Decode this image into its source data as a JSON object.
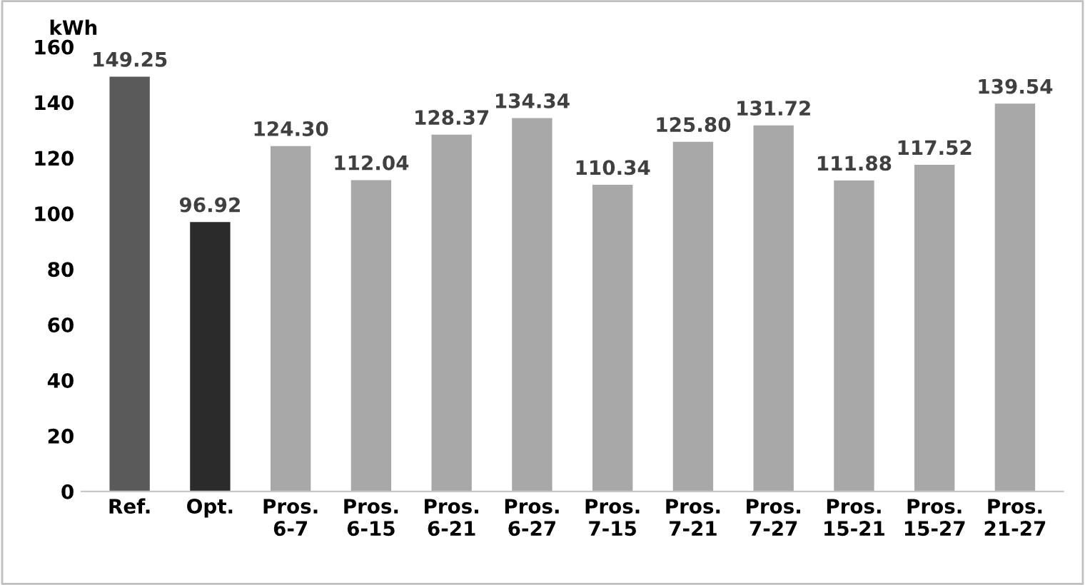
{
  "chart_data": {
    "type": "bar",
    "ylabel": "kWh",
    "categories": [
      "Ref.",
      "Opt.",
      "Pros.\n6-7",
      "Pros.\n6-15",
      "Pros.\n6-21",
      "Pros.\n6-27",
      "Pros.\n7-15",
      "Pros.\n7-21",
      "Pros.\n7-27",
      "Pros.\n15-21",
      "Pros.\n15-27",
      "Pros.\n21-27"
    ],
    "values": [
      149.25,
      96.92,
      124.3,
      112.04,
      128.37,
      134.34,
      110.34,
      125.8,
      131.72,
      111.88,
      117.52,
      139.54
    ],
    "value_labels": [
      "149.25",
      "96.92",
      "124.30",
      "112.04",
      "128.37",
      "134.34",
      "110.34",
      "125.80",
      "131.72",
      "111.88",
      "117.52",
      "139.54"
    ],
    "colors": [
      "#5a5a5a",
      "#2b2b2b",
      "#a8a8a8",
      "#a8a8a8",
      "#a8a8a8",
      "#a8a8a8",
      "#a8a8a8",
      "#a8a8a8",
      "#a8a8a8",
      "#a8a8a8",
      "#a8a8a8",
      "#a8a8a8"
    ],
    "ylim": [
      0,
      160
    ],
    "yticks": [
      0,
      20,
      40,
      60,
      80,
      100,
      120,
      140,
      160
    ],
    "grid": false,
    "legend": false
  }
}
